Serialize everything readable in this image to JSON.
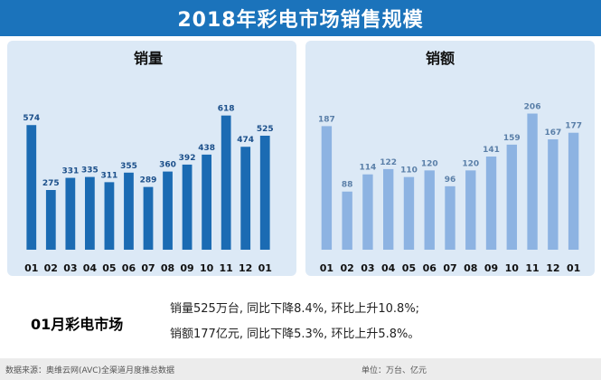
{
  "page": {
    "title": "2018年彩电市场销售规模",
    "summary_label": "01月彩电市场",
    "summary_line1": "销量525万台, 同比下降8.4%, 环比上升10.8%;",
    "summary_line2": "销额177亿元, 同比下降5.3%, 环比上升5.8%。",
    "source": "数据来源：奥维云网(AVC)全渠道月度推总数据",
    "unit": "单位：万台、亿元"
  },
  "colors": {
    "banner": "#1b73bb",
    "bar_volume": "#1b6bb3",
    "bar_value": "#8db3e2",
    "panel": "#dce9f6"
  },
  "chart_data": [
    {
      "type": "bar",
      "title": "销量",
      "categories": [
        "01",
        "02",
        "03",
        "04",
        "05",
        "06",
        "07",
        "08",
        "09",
        "10",
        "11",
        "12",
        "01"
      ],
      "values": [
        574,
        275,
        331,
        335,
        311,
        355,
        289,
        360,
        392,
        438,
        618,
        474,
        525
      ],
      "ylim": [
        0,
        700
      ]
    },
    {
      "type": "bar",
      "title": "销额",
      "categories": [
        "01",
        "02",
        "03",
        "04",
        "05",
        "06",
        "07",
        "08",
        "09",
        "10",
        "11",
        "12",
        "01"
      ],
      "values": [
        187,
        88,
        114,
        122,
        110,
        120,
        96,
        120,
        141,
        159,
        206,
        167,
        177
      ],
      "ylim": [
        0,
        230
      ]
    }
  ]
}
